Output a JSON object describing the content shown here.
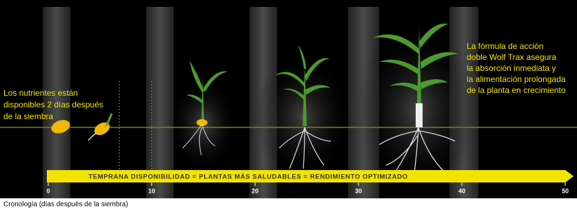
{
  "left_note": {
    "lines": [
      "Los nutrientes están",
      "disponibles 2 días después",
      "de la siembra"
    ]
  },
  "right_note": {
    "lines": [
      "La fórmula de acción",
      "doble Wolf Trax asegura",
      "la absorción inmediata y",
      "la alimentación prolongada",
      "de la planta en crecimiento"
    ]
  },
  "banner": "TEMPRANA DISPONIBILIDAD = PLANTAS MÁS SALUDABLES = RENDIMIENTO OPTIMIZADO",
  "timeline": {
    "ticks": [
      0,
      10,
      20,
      30,
      40,
      50
    ],
    "label": "Cronología (días después de la siembra)"
  }
}
